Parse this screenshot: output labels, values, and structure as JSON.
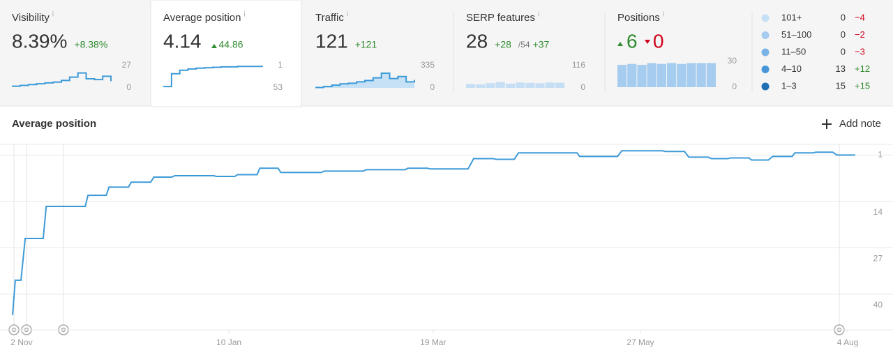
{
  "info_icon": "i",
  "cards": [
    {
      "title": "Visibility",
      "value": "8.39%",
      "change": "+8.38%",
      "axis": {
        "top": 27,
        "bottom": 0
      },
      "kind": "line",
      "spark": [
        2,
        3,
        4,
        5,
        6,
        7,
        9,
        13,
        18,
        11,
        10,
        14,
        8
      ]
    },
    {
      "title": "Average position",
      "value": "4.14",
      "change": "44.86",
      "axis": {
        "top": 1,
        "bottom": 53
      },
      "kind": "line",
      "spark": [
        50,
        20,
        12,
        9,
        7,
        6,
        5,
        4,
        4,
        3,
        3,
        3,
        4
      ]
    },
    {
      "title": "Traffic",
      "value": "121",
      "change": "+121",
      "axis": {
        "top": 335,
        "bottom": 0
      },
      "kind": "area",
      "spark": [
        5,
        20,
        40,
        60,
        70,
        90,
        110,
        150,
        220,
        140,
        170,
        90,
        120
      ]
    },
    {
      "title": "SERP features",
      "value": "28",
      "change": "+28",
      "extra": "/54",
      "extra_change": "+37",
      "axis": {
        "top": 116,
        "bottom": 0
      },
      "kind": "bars",
      "spark": [
        20,
        18,
        25,
        30,
        22,
        28,
        26,
        24,
        28,
        27
      ]
    },
    {
      "title": "Positions",
      "up": "6",
      "down": "0",
      "axis": {
        "top": 30,
        "bottom": 0
      },
      "kind": "bars",
      "spark": [
        26,
        27,
        26,
        28,
        27,
        28,
        27,
        28,
        28,
        28
      ]
    }
  ],
  "legend": [
    {
      "name": "101+",
      "count": 0,
      "change": "−4",
      "color": "#c6dff5"
    },
    {
      "name": "51–100",
      "count": 0,
      "change": "−2",
      "color": "#a6ccef"
    },
    {
      "name": "11–50",
      "count": 0,
      "change": "−3",
      "color": "#7ab4e7"
    },
    {
      "name": "4–10",
      "count": 13,
      "change": "+12",
      "color": "#4797d8"
    },
    {
      "name": "1–3",
      "count": 15,
      "change": "+15",
      "color": "#1f6fb5"
    }
  ],
  "chart_data": {
    "type": "line",
    "title": "Average position",
    "action": "Add note",
    "color": "#3d9ad8",
    "y_inverted": true,
    "ylim": [
      -2,
      50
    ],
    "yticks": [
      1,
      14,
      27,
      40
    ],
    "xlim": [
      -3,
      278
    ],
    "xticks": [
      {
        "value": 0,
        "label": "2 Nov"
      },
      {
        "value": 69,
        "label": "10 Jan"
      },
      {
        "value": 137,
        "label": "19 Mar"
      },
      {
        "value": 206,
        "label": "27 May"
      },
      {
        "value": 275,
        "label": "4 Aug"
      }
    ],
    "x": [
      -3,
      -2.1,
      -0.2,
      1.2,
      7.2,
      8.2,
      21.2,
      22.1,
      28.2,
      29.1,
      35.6,
      36.5,
      43,
      44,
      50,
      51,
      64,
      64.9,
      71,
      71.9,
      78.4,
      79.3,
      85.4,
      86.3,
      99.8,
      100.7,
      113.7,
      114.7,
      127.7,
      128.6,
      135.1,
      136.1,
      148.6,
      150.5,
      157,
      157.9,
      164,
      165.4,
      184.9,
      185.8,
      198.4,
      199.8,
      213.3,
      214.2,
      220.7,
      222.1,
      228.6,
      229.6,
      235.1,
      236.1,
      242.1,
      243,
      248.6,
      250,
      256.5,
      257.4,
      263.5,
      264.4,
      270,
      271.4,
      277.5
    ],
    "values": [
      45.9,
      36.1,
      36.1,
      24.4,
      24.4,
      15.4,
      15.4,
      12.3,
      12.3,
      10,
      10,
      8.6,
      8.6,
      7.2,
      7.2,
      6.8,
      6.8,
      7,
      7,
      6.5,
      6.5,
      4.7,
      4.7,
      5.9,
      5.9,
      5.5,
      5.5,
      5.1,
      5.1,
      4.7,
      4.7,
      4.9,
      4.9,
      2,
      2,
      2.2,
      2.2,
      0.4,
      0.4,
      1.4,
      1.4,
      -0.2,
      -0.2,
      0,
      0,
      1.6,
      1.6,
      2,
      2,
      1.8,
      1.8,
      2.4,
      2.4,
      1.4,
      1.4,
      0.4,
      0.4,
      0.2,
      0.2,
      1,
      1
    ]
  }
}
